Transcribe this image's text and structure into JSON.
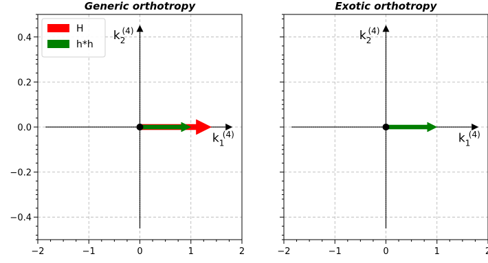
{
  "chart_data": [
    {
      "type": "vector",
      "title": "Generic orthotropy",
      "xlim": [
        -2,
        2
      ],
      "ylim": [
        -0.5,
        0.5
      ],
      "xticks": [
        -2,
        -1,
        0,
        1,
        2
      ],
      "yticks": [
        -0.4,
        -0.2,
        0.0,
        0.2,
        0.4
      ],
      "xtick_labels": [
        "−2",
        "−1",
        "0",
        "1",
        "2"
      ],
      "ytick_labels": [
        "−0.4",
        "−0.2",
        "0.0",
        "0.2",
        "0.4"
      ],
      "grid": true,
      "axis_labels": [
        {
          "base": "k",
          "sub": "1",
          "sup": "(4)"
        },
        {
          "base": "k",
          "sub": "2",
          "sup": "(4)"
        }
      ],
      "axes_arrows": {
        "x": [
          -1.85,
          1.8
        ],
        "y": [
          -0.45,
          0.45
        ]
      },
      "origin": [
        0,
        0
      ],
      "vectors": [
        {
          "series": "H",
          "x": 1.4,
          "y": 0,
          "color": "#ff0000"
        },
        {
          "series": "h*h",
          "x": 1.0,
          "y": 0,
          "color": "#008000"
        }
      ],
      "legend": {
        "position": "top-left",
        "entries": [
          {
            "label": "H",
            "color": "#ff0000"
          },
          {
            "label": "h*h",
            "color": "#008000"
          }
        ]
      }
    },
    {
      "type": "vector",
      "title": "Exotic orthotropy",
      "xlim": [
        -2,
        2
      ],
      "ylim": [
        -0.5,
        0.5
      ],
      "xticks": [
        -2,
        -1,
        0,
        1,
        2
      ],
      "yticks": [
        -0.4,
        -0.2,
        0.0,
        0.2,
        0.4
      ],
      "xtick_labels": [
        "−2",
        "−1",
        "0",
        "1",
        "2"
      ],
      "ytick_labels": [],
      "grid": true,
      "axis_labels": [
        {
          "base": "k",
          "sub": "1",
          "sup": "(4)"
        },
        {
          "base": "k",
          "sub": "2",
          "sup": "(4)"
        }
      ],
      "axes_arrows": {
        "x": [
          -1.85,
          1.8
        ],
        "y": [
          -0.45,
          0.45
        ]
      },
      "origin": [
        0,
        0
      ],
      "vectors": [
        {
          "series": "h*h",
          "x": 1.0,
          "y": 0,
          "color": "#008000"
        }
      ],
      "legend": null
    }
  ]
}
